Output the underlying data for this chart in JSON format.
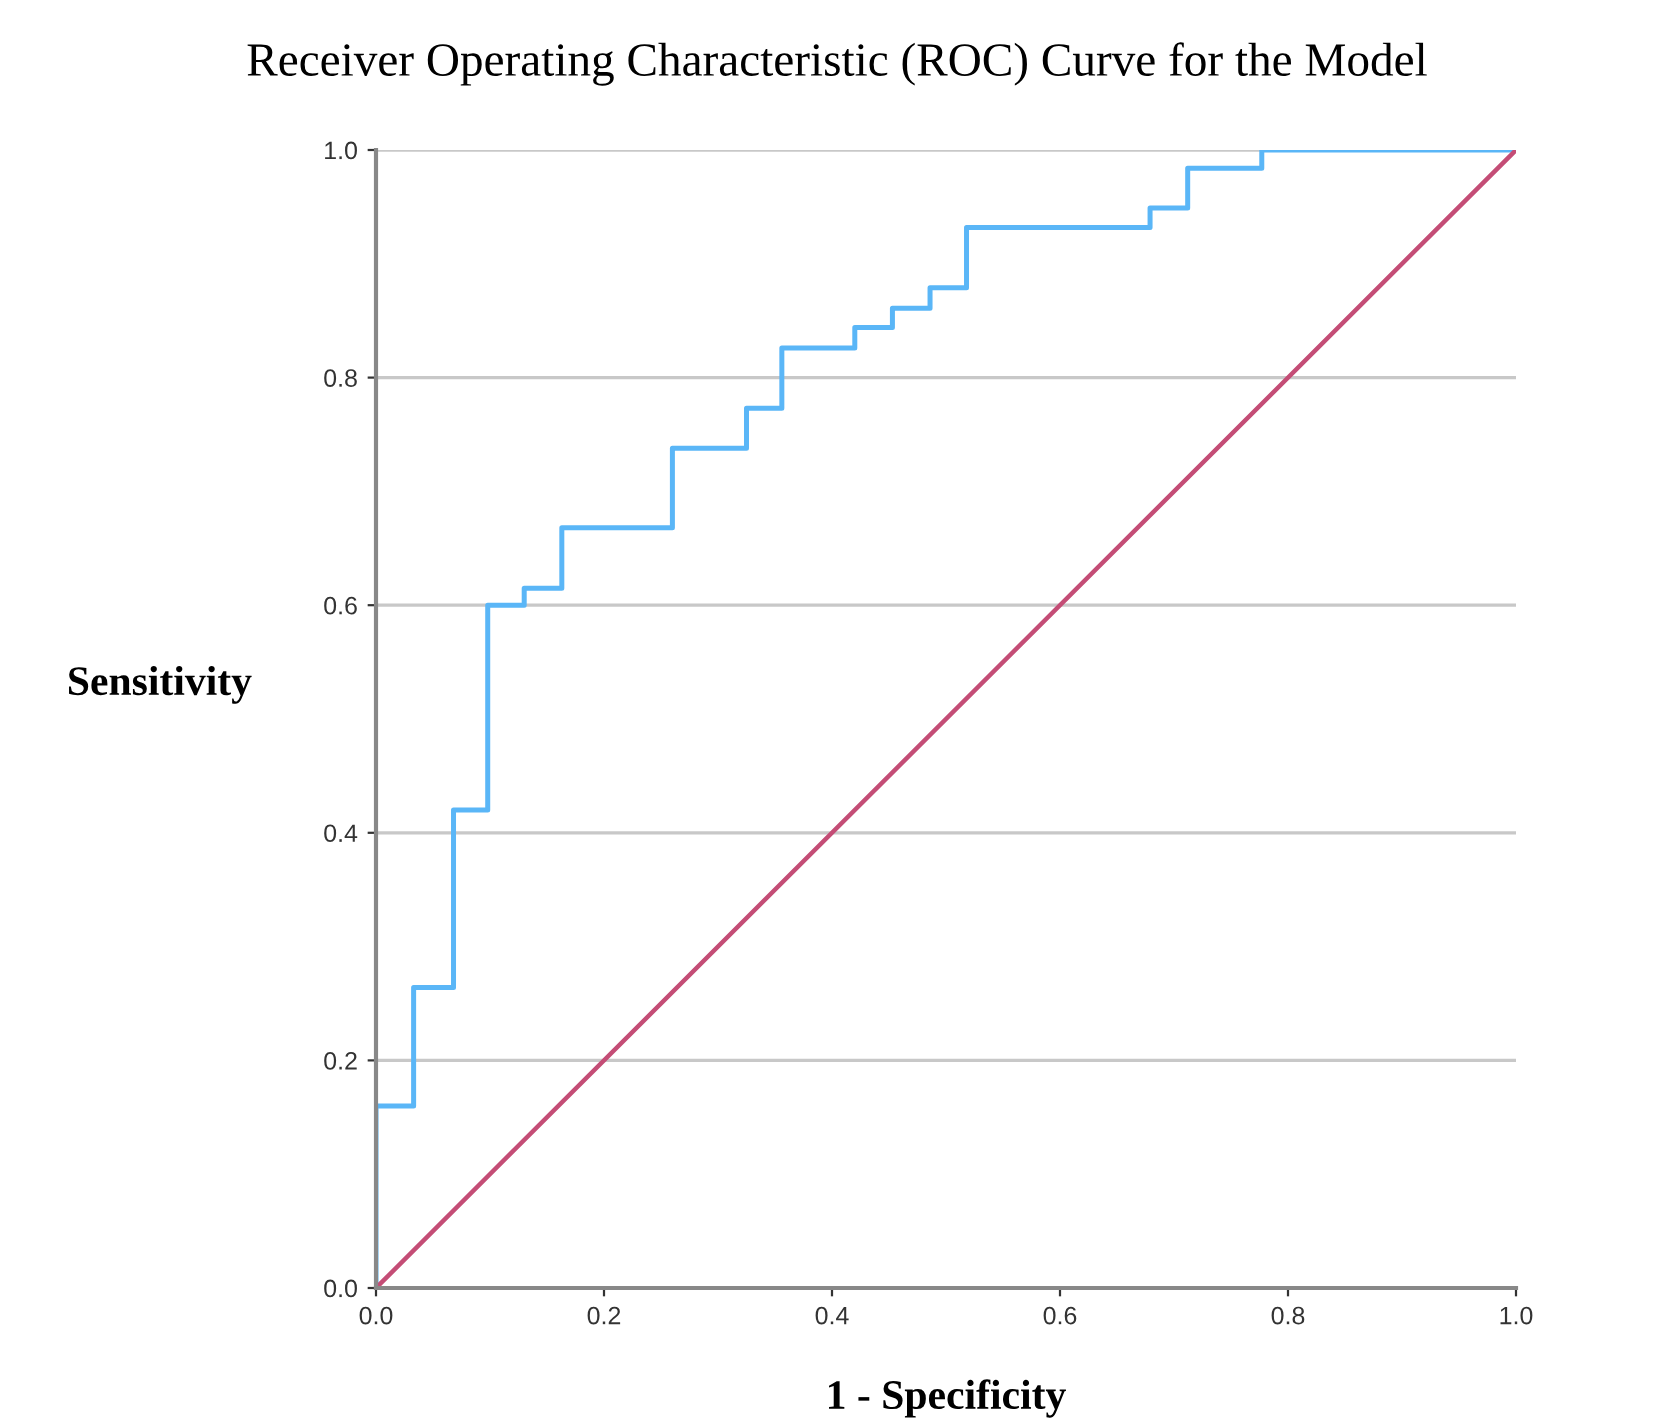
{
  "chart_data": {
    "type": "step",
    "title": "Receiver Operating Characteristic (ROC) Curve for the Model",
    "xlabel": "1 - Specificity",
    "ylabel": "Sensitivity",
    "series": [
      {
        "color": "#5ab6f7",
        "x": [
          0,
          0,
          0.033,
          0.068,
          0.098,
          0.13,
          0.163,
          0.26,
          0.325,
          0.356,
          0.42,
          0.453,
          0.486,
          0.518,
          0.679,
          0.712,
          0.777,
          1.0
        ],
        "values": [
          0,
          0.16,
          0.264,
          0.42,
          0.6,
          0.615,
          0.668,
          0.738,
          0.773,
          0.826,
          0.844,
          0.861,
          0.879,
          0.932,
          0.949,
          0.984,
          1.0,
          1.0
        ]
      },
      {
        "type": "line",
        "color": "#c44d76",
        "x": [
          0,
          1
        ],
        "values": [
          0,
          1
        ]
      }
    ],
    "xlim": [
      0,
      1
    ],
    "ylim": [
      0,
      1
    ],
    "xticks": [
      "0.0",
      0.2,
      0.4,
      0.6,
      0.8,
      "1.0"
    ],
    "yticks": [
      "0.0",
      0.2,
      0.4,
      0.6,
      0.8,
      "1.0"
    ],
    "grid": "y"
  }
}
